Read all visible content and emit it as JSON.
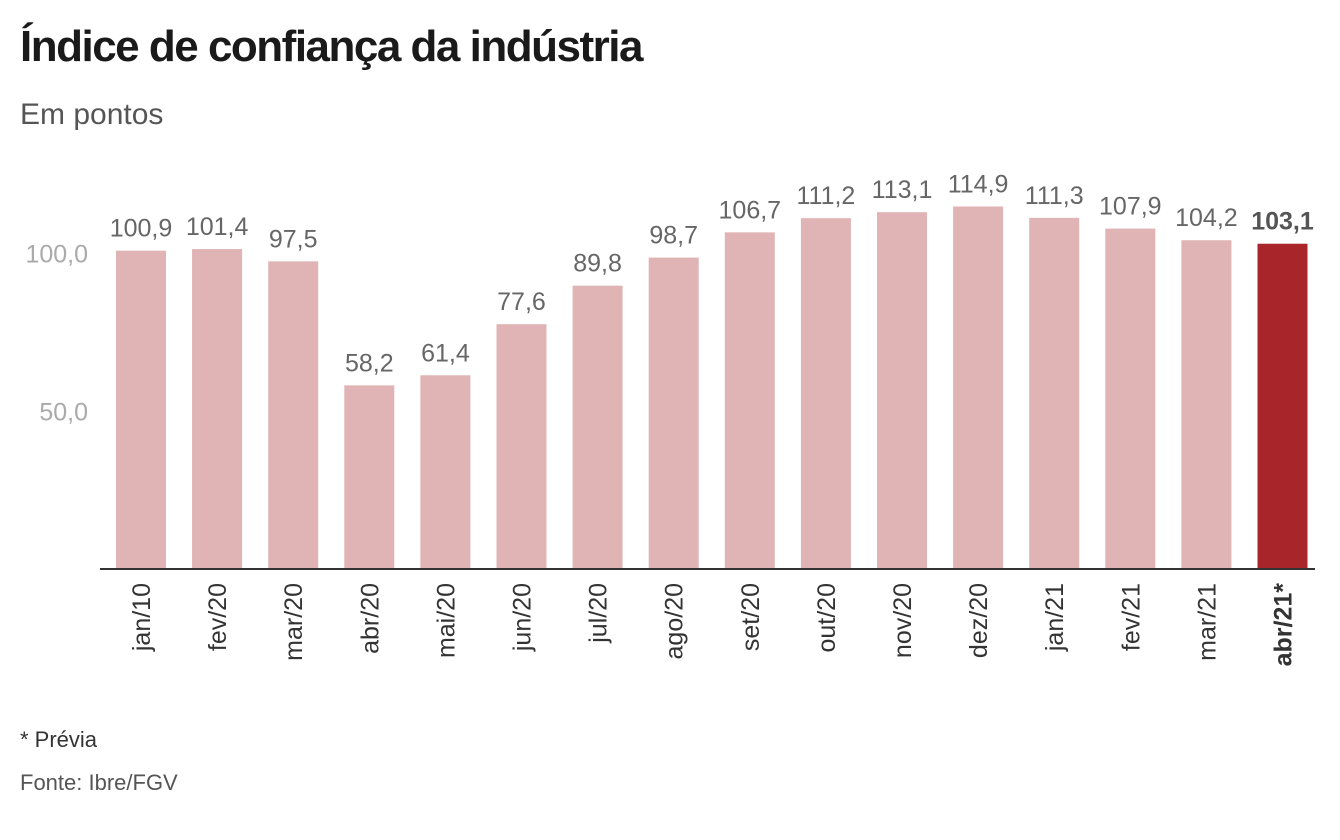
{
  "header": {
    "title": "Índice de confiança da indústria",
    "subtitle": "Em pontos"
  },
  "footer": {
    "note": "* Prévia",
    "source": "Fonte: Ibre/FGV"
  },
  "colors": {
    "bar": "#e0b3b4",
    "highlight": "#a8262a",
    "value_label": "#666666",
    "highlight_label": "#555555",
    "ytick": "#aaaaaa",
    "axis": "#333333",
    "xtick": "#333333"
  },
  "chart_data": {
    "type": "bar",
    "title": "Índice de confiança da indústria",
    "subtitle": "Em pontos",
    "categories": [
      "jan/10",
      "fev/20",
      "mar/20",
      "abr/20",
      "mai/20",
      "jun/20",
      "jul/20",
      "ago/20",
      "set/20",
      "out/20",
      "nov/20",
      "dez/20",
      "jan/21",
      "fev/21",
      "mar/21",
      "abr/21*"
    ],
    "values": [
      100.9,
      101.4,
      97.5,
      58.2,
      61.4,
      77.6,
      89.8,
      98.7,
      106.7,
      111.2,
      113.1,
      114.9,
      111.3,
      107.9,
      104.2,
      103.1
    ],
    "value_labels": [
      "100,9",
      "101,4",
      "97,5",
      "58,2",
      "61,4",
      "77,6",
      "89,8",
      "98,7",
      "106,7",
      "111,2",
      "113,1",
      "114,9",
      "111,3",
      "107,9",
      "104,2",
      "103,1"
    ],
    "highlight_index": 15,
    "yticks": [
      50,
      100
    ],
    "ytick_labels": [
      "50,0",
      "100,0"
    ],
    "ylim": [
      0,
      120
    ],
    "grid": false,
    "legend": "none"
  }
}
